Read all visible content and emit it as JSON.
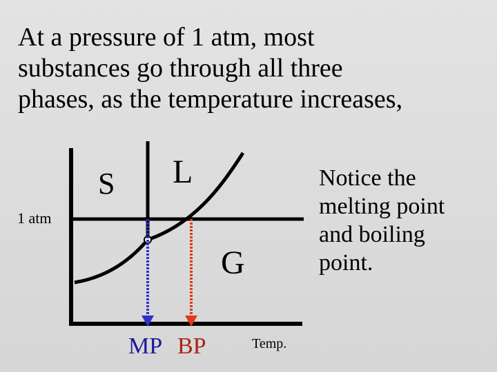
{
  "heading": {
    "lines": [
      "At a pressure of 1 atm, most",
      "substances go through all three",
      "phases, as the temperature increases,"
    ]
  },
  "diagram": {
    "phase_solid": "S",
    "phase_liquid": "L",
    "phase_gas": "G",
    "pressure_label": "1 atm",
    "x_axis_label": "Temp.",
    "melting_point_label": "MP",
    "boiling_point_label": "BP",
    "colors": {
      "axes": "#000000",
      "melting_arrow": "#2f2fd0",
      "boiling_arrow": "#e03a1a"
    }
  },
  "note": {
    "lines": [
      "Notice the",
      "melting point",
      "and boiling",
      "point."
    ]
  }
}
